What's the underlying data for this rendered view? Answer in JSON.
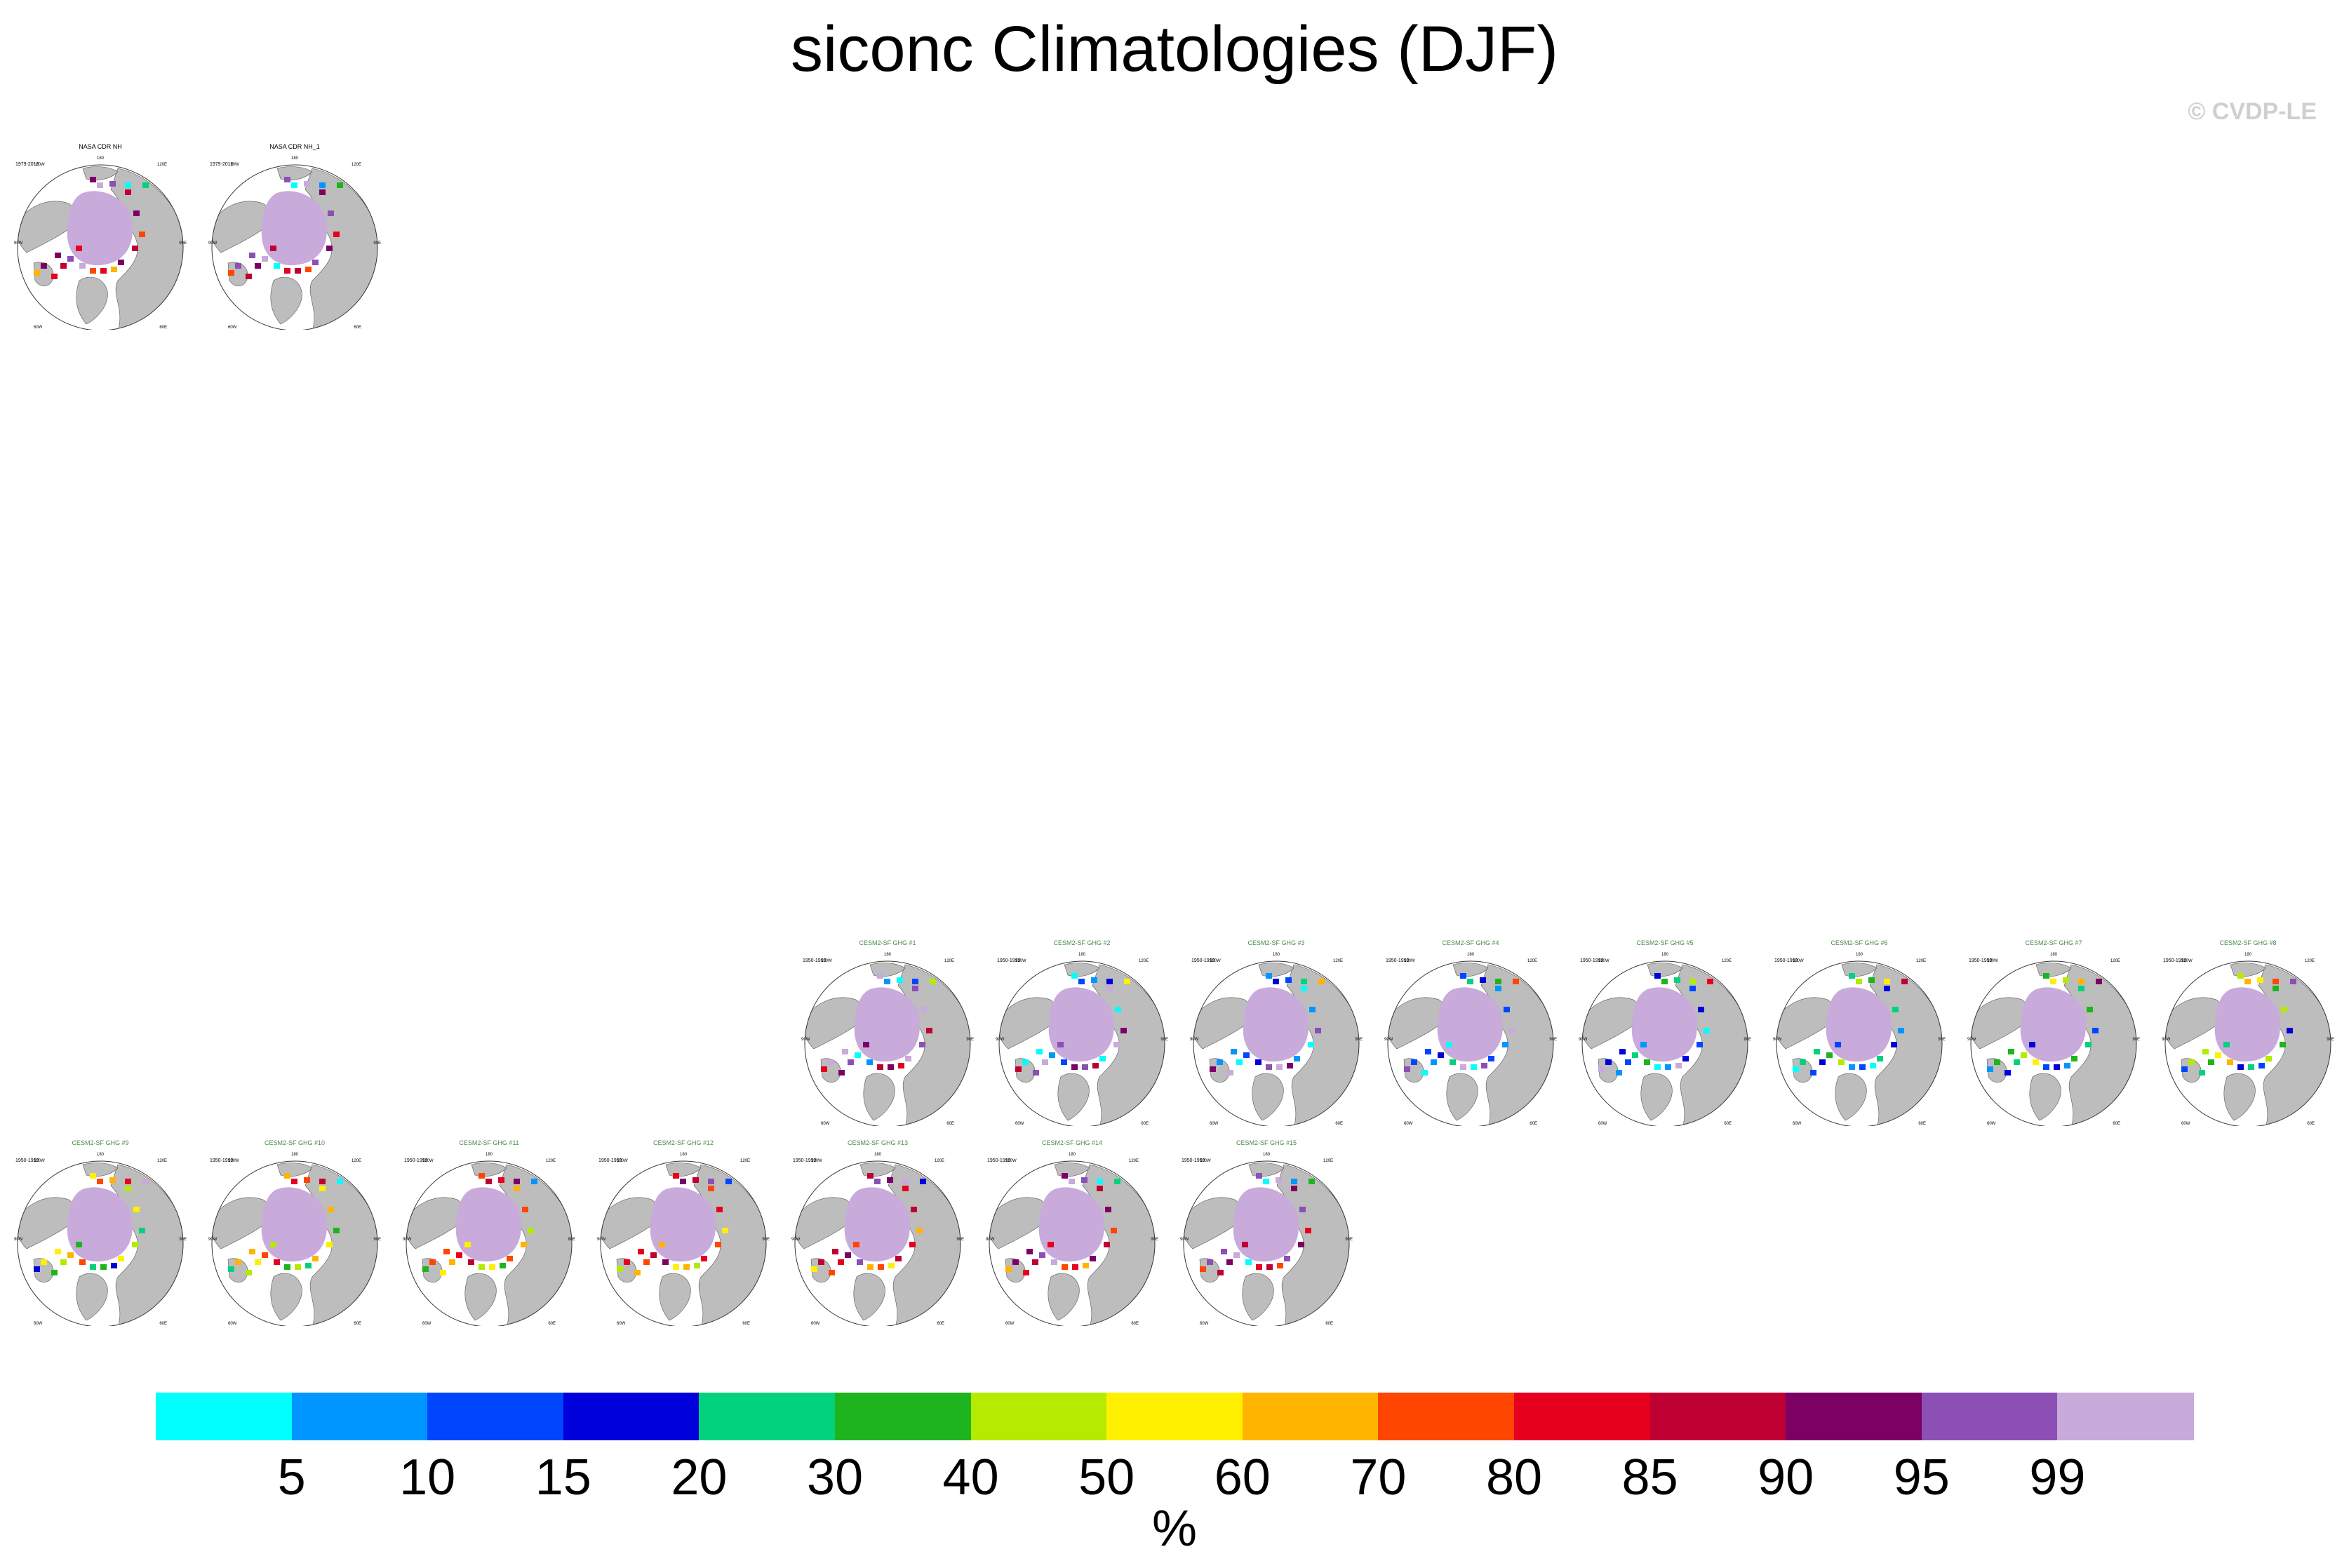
{
  "title": "siconc Climatologies (DJF)",
  "copyright": "© CVDP-LE",
  "colors": {
    "land": "#bdbdbd",
    "ocean": "#ffffff",
    "ice_core": "#c8aadb",
    "obs_title": "#000000",
    "model_title": "#4a8a4a"
  },
  "map_labels": {
    "top": "180",
    "upper_left": "120W",
    "upper_right": "120E",
    "left": "90W",
    "right": "90E",
    "lower_left": "60W",
    "lower_right": "60E",
    "bottom": "0"
  },
  "panels": [
    {
      "title": "NASA CDR NH",
      "period": "1979-2016",
      "kind": "obs"
    },
    {
      "title": "NASA CDR NH_1",
      "period": "1979-2016",
      "kind": "obs"
    },
    {
      "title": "CESM2-SF GHG #1",
      "period": "1950-1999",
      "kind": "model"
    },
    {
      "title": "CESM2-SF GHG #2",
      "period": "1950-1999",
      "kind": "model"
    },
    {
      "title": "CESM2-SF GHG #3",
      "period": "1950-1999",
      "kind": "model"
    },
    {
      "title": "CESM2-SF GHG #4",
      "period": "1950-1999",
      "kind": "model"
    },
    {
      "title": "CESM2-SF GHG #5",
      "period": "1950-1999",
      "kind": "model"
    },
    {
      "title": "CESM2-SF GHG #6",
      "period": "1950-1999",
      "kind": "model"
    },
    {
      "title": "CESM2-SF GHG #7",
      "period": "1950-1999",
      "kind": "model"
    },
    {
      "title": "CESM2-SF GHG #8",
      "period": "1950-1999",
      "kind": "model"
    },
    {
      "title": "CESM2-SF GHG #9",
      "period": "1950-1999",
      "kind": "model"
    },
    {
      "title": "CESM2-SF GHG #10",
      "period": "1950-1999",
      "kind": "model"
    },
    {
      "title": "CESM2-SF GHG #11",
      "period": "1950-1999",
      "kind": "model"
    },
    {
      "title": "CESM2-SF GHG #12",
      "period": "1950-1999",
      "kind": "model"
    },
    {
      "title": "CESM2-SF GHG #13",
      "period": "1950-1999",
      "kind": "model"
    },
    {
      "title": "CESM2-SF GHG #14",
      "period": "1950-1999",
      "kind": "model"
    },
    {
      "title": "CESM2-SF GHG #15",
      "period": "1950-1999",
      "kind": "model"
    }
  ],
  "chart_data": {
    "type": "heatmap",
    "title": "siconc Climatologies (DJF)",
    "projection": "north polar stereographic",
    "colorbar": {
      "unit": "%",
      "levels": [
        "5",
        "10",
        "15",
        "20",
        "30",
        "40",
        "50",
        "60",
        "70",
        "80",
        "85",
        "90",
        "95",
        "99"
      ],
      "colors": [
        "#00ffff",
        "#0096ff",
        "#0046ff",
        "#0000dc",
        "#00d27d",
        "#1eb41e",
        "#b4eb00",
        "#fff000",
        "#ffb400",
        "#ff4600",
        "#e6001e",
        "#be0032",
        "#7d0064",
        "#8c50b4",
        "#c8aadb"
      ]
    }
  }
}
